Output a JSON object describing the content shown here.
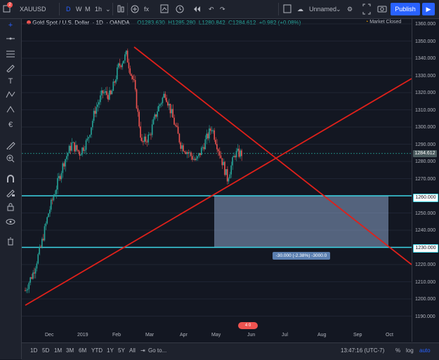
{
  "topbar": {
    "symbol": "XAUUSD",
    "intervals": [
      "D",
      "W",
      "M"
    ],
    "minute_interval": "1h",
    "layout_name": "Unnamed",
    "publish_label": "Publish",
    "notification_count": "2"
  },
  "legend": {
    "title": "Gold Spot / U.S. Dollar",
    "interval": "1D",
    "source": "OANDA",
    "open": "O1283.630",
    "high": "H1285.280",
    "low": "L1280.842",
    "close": "C1284.612",
    "change": "+0.982 (+0.08%)",
    "market_status": "Market Closed"
  },
  "price_axis": [
    "1360.000",
    "1350.000",
    "1340.000",
    "1330.000",
    "1320.000",
    "1310.000",
    "1300.000",
    "1290.000",
    "1280.000",
    "1270.000",
    "1260.000",
    "1250.000",
    "1240.000",
    "1230.000",
    "1220.000",
    "1210.000",
    "1200.000",
    "1190.000"
  ],
  "price_tags": {
    "last": "1284.612",
    "upper_line": "1260.000",
    "lower_line": "1230.000"
  },
  "time_axis": [
    "Dec",
    "2019",
    "Feb",
    "Mar",
    "Apr",
    "May",
    "Jun",
    "Jul",
    "Aug",
    "Sep",
    "Oct"
  ],
  "measure_label": "-30.000 (-2.38%) -3000.0",
  "event_badge": "4 0",
  "bottom": {
    "ranges": [
      "1D",
      "5D",
      "1M",
      "3M",
      "6M",
      "YTD",
      "1Y",
      "5Y",
      "All"
    ],
    "goto": "Go to...",
    "time": "13:47:16 (UTC-7)",
    "percent": "%",
    "log": "log",
    "auto": "auto"
  },
  "colors": {
    "bg": "#131722",
    "up": "#26a69a",
    "down": "#ef5350",
    "line_red": "#e0201a",
    "cyan": "#3cd6e6",
    "accent": "#2962ff"
  },
  "chart_data": {
    "type": "candlestick",
    "ylim": [
      1190,
      1365
    ],
    "series_close_sample": [
      1205,
      1215,
      1230,
      1250,
      1265,
      1280,
      1290,
      1285,
      1292,
      1310,
      1320,
      1318,
      1335,
      1342,
      1325,
      1290,
      1295,
      1310,
      1320,
      1305,
      1290,
      1285,
      1280,
      1290,
      1300,
      1285,
      1270,
      1284.6
    ]
  }
}
